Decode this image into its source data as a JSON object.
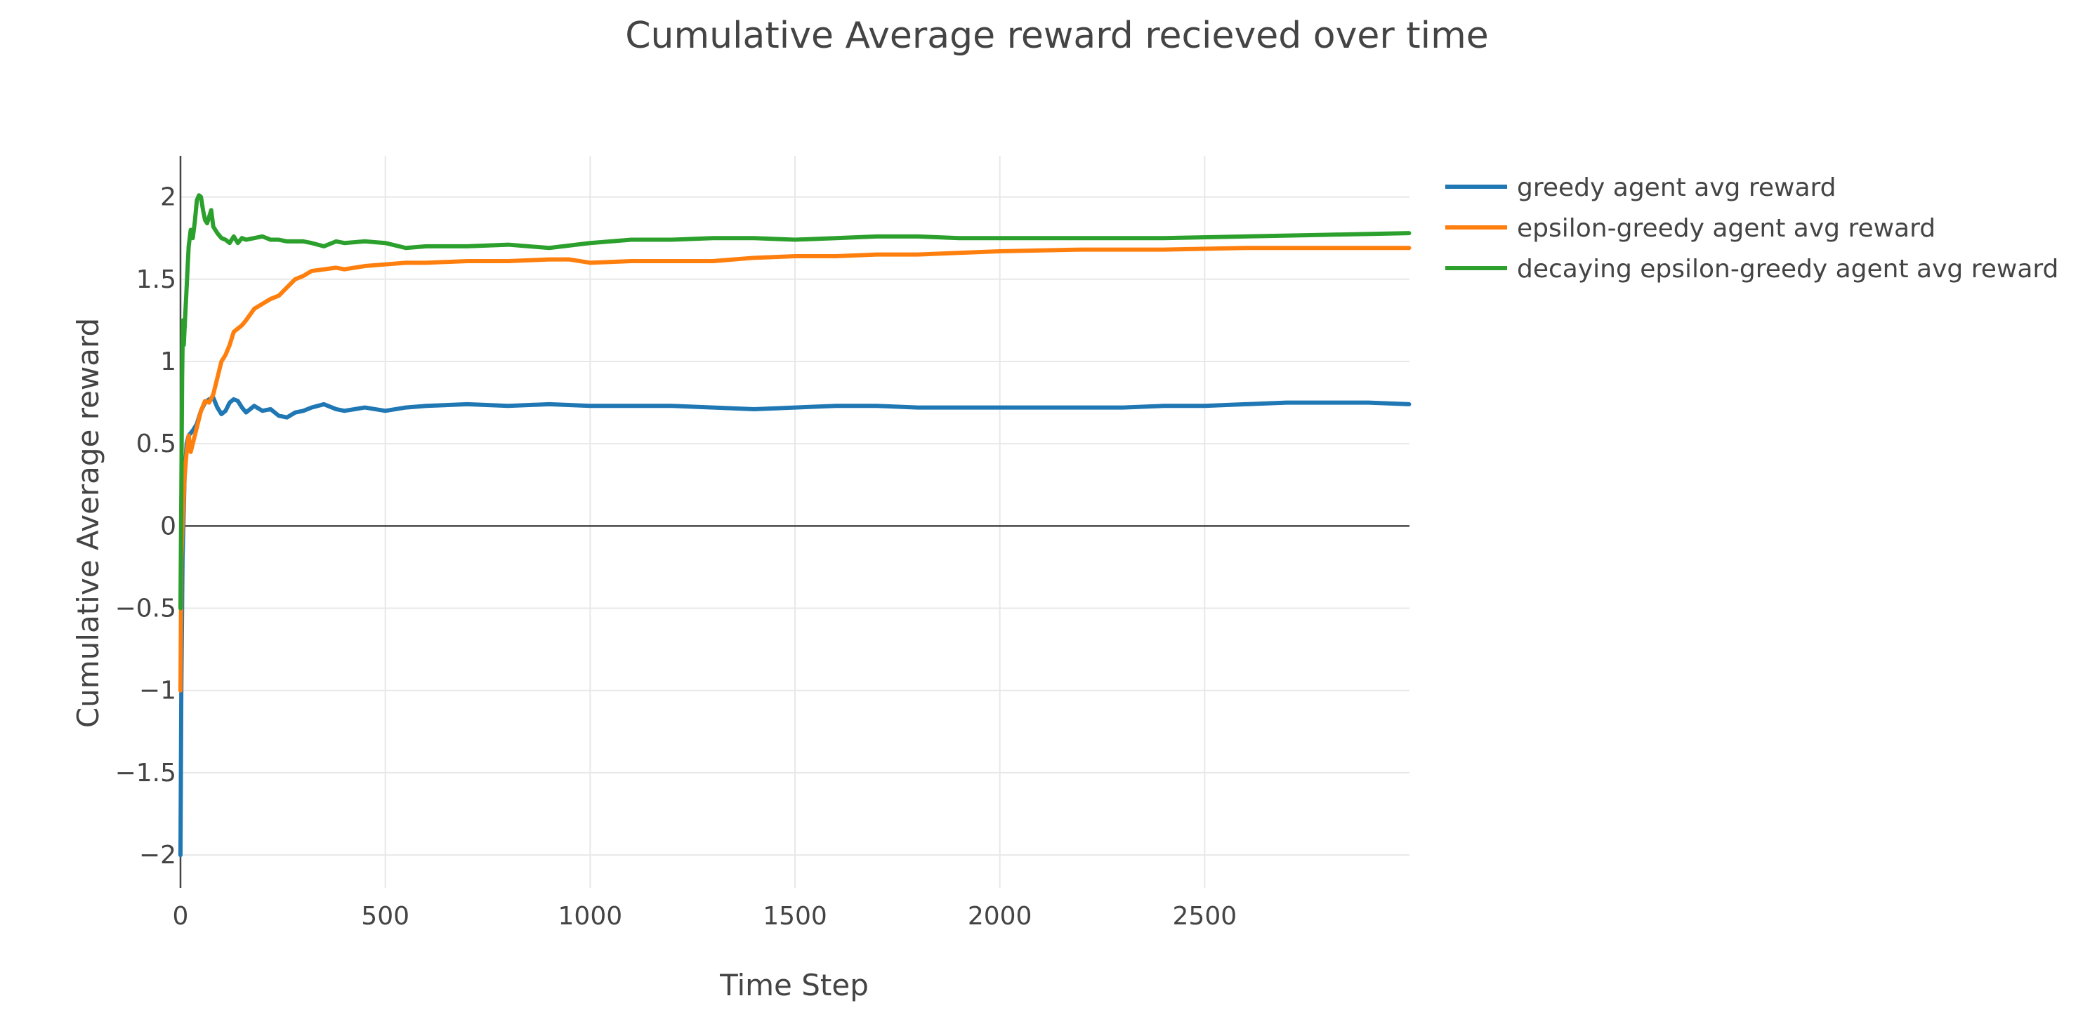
{
  "chart_data": {
    "type": "line",
    "title": "Cumulative Average reward recieved over time",
    "xlabel": "Time Step",
    "ylabel": "Cumulative Average reward",
    "xlim": [
      0,
      3000
    ],
    "ylim": [
      -2.2,
      2.25
    ],
    "xticks": [
      0,
      500,
      1000,
      1500,
      2000,
      2500
    ],
    "xtick_labels": [
      "0",
      "500",
      "1000",
      "1500",
      "2000",
      "2500"
    ],
    "yticks": [
      -2,
      -1.5,
      -1,
      -0.5,
      0,
      0.5,
      1,
      1.5,
      2
    ],
    "ytick_labels": [
      "−2",
      "−1.5",
      "−1",
      "−0.5",
      "0",
      "0.5",
      "1",
      "1.5",
      "2"
    ],
    "grid": true,
    "legend_position": "top-right, outside plot area",
    "series": [
      {
        "name": "greedy agent avg reward",
        "color": "#1f77b4",
        "x": [
          0,
          2,
          5,
          10,
          15,
          20,
          30,
          40,
          50,
          60,
          70,
          80,
          90,
          100,
          110,
          120,
          130,
          140,
          150,
          160,
          180,
          200,
          220,
          240,
          260,
          280,
          300,
          320,
          350,
          380,
          400,
          450,
          500,
          550,
          600,
          700,
          800,
          900,
          1000,
          1100,
          1200,
          1300,
          1400,
          1500,
          1600,
          1700,
          1800,
          1900,
          2000,
          2100,
          2200,
          2300,
          2400,
          2500,
          2600,
          2700,
          2800,
          2900,
          2999
        ],
        "y": [
          -2.0,
          -1.0,
          -0.2,
          0.3,
          0.5,
          0.55,
          0.58,
          0.62,
          0.7,
          0.75,
          0.77,
          0.78,
          0.72,
          0.68,
          0.7,
          0.75,
          0.77,
          0.76,
          0.72,
          0.69,
          0.73,
          0.7,
          0.71,
          0.67,
          0.66,
          0.69,
          0.7,
          0.72,
          0.74,
          0.71,
          0.7,
          0.72,
          0.7,
          0.72,
          0.73,
          0.74,
          0.73,
          0.74,
          0.73,
          0.73,
          0.73,
          0.72,
          0.71,
          0.72,
          0.73,
          0.73,
          0.72,
          0.72,
          0.72,
          0.72,
          0.72,
          0.72,
          0.73,
          0.73,
          0.74,
          0.75,
          0.75,
          0.75,
          0.74
        ]
      },
      {
        "name": "epsilon-greedy agent avg reward",
        "color": "#ff7f0e",
        "x": [
          0,
          2,
          5,
          10,
          15,
          20,
          25,
          30,
          40,
          50,
          60,
          70,
          80,
          90,
          100,
          110,
          120,
          130,
          140,
          150,
          160,
          180,
          200,
          220,
          240,
          260,
          280,
          300,
          320,
          350,
          380,
          400,
          450,
          500,
          550,
          600,
          700,
          800,
          900,
          950,
          1000,
          1100,
          1200,
          1300,
          1400,
          1500,
          1600,
          1700,
          1800,
          1900,
          2000,
          2200,
          2400,
          2600,
          2800,
          2999
        ],
        "y": [
          -1.0,
          -0.2,
          0.0,
          0.3,
          0.45,
          0.55,
          0.45,
          0.5,
          0.6,
          0.7,
          0.76,
          0.75,
          0.8,
          0.9,
          1.0,
          1.04,
          1.1,
          1.18,
          1.2,
          1.22,
          1.25,
          1.32,
          1.35,
          1.38,
          1.4,
          1.45,
          1.5,
          1.52,
          1.55,
          1.56,
          1.57,
          1.56,
          1.58,
          1.59,
          1.6,
          1.6,
          1.61,
          1.61,
          1.62,
          1.62,
          1.6,
          1.61,
          1.61,
          1.61,
          1.63,
          1.64,
          1.64,
          1.65,
          1.65,
          1.66,
          1.67,
          1.68,
          1.68,
          1.69,
          1.69,
          1.69
        ]
      },
      {
        "name": "decaying epsilon-greedy agent avg reward",
        "color": "#2ca02c",
        "x": [
          0,
          2,
          4,
          6,
          8,
          10,
          15,
          20,
          25,
          30,
          35,
          40,
          45,
          50,
          55,
          60,
          65,
          70,
          75,
          80,
          90,
          100,
          110,
          120,
          130,
          140,
          150,
          160,
          180,
          200,
          220,
          240,
          260,
          280,
          300,
          320,
          350,
          380,
          400,
          450,
          500,
          550,
          600,
          650,
          700,
          800,
          900,
          1000,
          1100,
          1200,
          1300,
          1400,
          1500,
          1600,
          1700,
          1800,
          1900,
          2000,
          2200,
          2400,
          2600,
          2800,
          2999
        ],
        "y": [
          -0.5,
          0.2,
          0.9,
          1.25,
          1.1,
          1.2,
          1.45,
          1.7,
          1.8,
          1.75,
          1.85,
          1.98,
          2.01,
          2.0,
          1.92,
          1.86,
          1.84,
          1.88,
          1.92,
          1.82,
          1.78,
          1.75,
          1.74,
          1.72,
          1.76,
          1.72,
          1.75,
          1.74,
          1.75,
          1.76,
          1.74,
          1.74,
          1.73,
          1.73,
          1.73,
          1.72,
          1.7,
          1.73,
          1.72,
          1.73,
          1.72,
          1.69,
          1.7,
          1.7,
          1.7,
          1.71,
          1.69,
          1.72,
          1.74,
          1.74,
          1.75,
          1.75,
          1.74,
          1.75,
          1.76,
          1.76,
          1.75,
          1.75,
          1.75,
          1.75,
          1.76,
          1.77,
          1.78
        ]
      }
    ]
  }
}
